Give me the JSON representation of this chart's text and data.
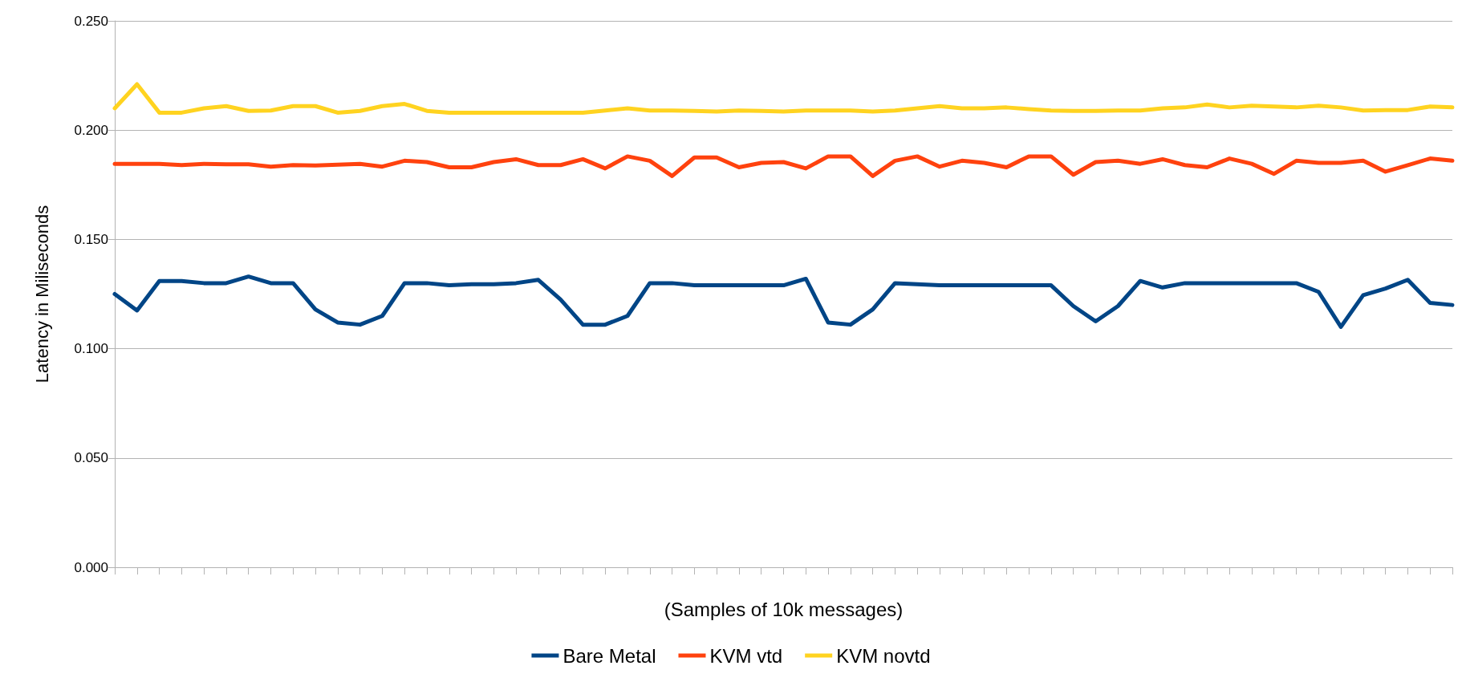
{
  "chart_data": {
    "type": "line",
    "xlabel": "(Samples of 10k messages)",
    "ylabel": "Latency in Miliseconds",
    "categories": [
      null,
      null,
      null,
      null,
      null,
      null,
      null,
      null,
      null,
      null,
      null,
      null,
      null,
      null,
      null,
      null,
      null,
      null,
      null,
      null,
      null,
      null,
      null,
      null,
      null,
      null,
      null,
      null,
      null,
      null,
      null,
      null,
      null,
      null,
      null,
      null,
      null,
      null,
      null,
      null,
      null,
      null,
      null,
      null,
      null,
      null,
      null,
      null,
      null,
      null,
      null,
      null,
      null,
      null,
      null,
      null,
      null,
      null,
      null,
      null,
      null
    ],
    "series": [
      {
        "name": "Bare Metal",
        "color": "#004586",
        "values": [
          0.125,
          0.1175,
          0.131,
          0.131,
          0.13,
          0.13,
          0.133,
          0.13,
          0.13,
          0.118,
          0.112,
          0.111,
          0.115,
          0.13,
          0.13,
          0.129,
          0.1295,
          0.1295,
          0.13,
          0.1315,
          0.1225,
          0.111,
          0.111,
          0.115,
          0.13,
          0.13,
          0.129,
          0.129,
          0.129,
          0.129,
          0.129,
          0.132,
          0.112,
          0.111,
          0.118,
          0.13,
          0.1295,
          0.129,
          0.129,
          0.129,
          0.129,
          0.129,
          0.129,
          0.1195,
          0.1125,
          0.1195,
          0.131,
          0.128,
          0.13,
          0.13,
          0.13,
          0.13,
          0.13,
          0.13,
          0.126,
          0.11,
          0.1245,
          0.1275,
          0.1315,
          0.121,
          0.12
        ]
      },
      {
        "name": "KVM vtd",
        "color": "#ff420e",
        "values": [
          0.1846,
          0.1846,
          0.1846,
          0.184,
          0.1846,
          0.1844,
          0.1844,
          0.1833,
          0.184,
          0.1838,
          0.1842,
          0.1846,
          0.1833,
          0.186,
          0.1854,
          0.183,
          0.183,
          0.1854,
          0.1867,
          0.184,
          0.184,
          0.1867,
          0.1825,
          0.188,
          0.186,
          0.179,
          0.1875,
          0.1875,
          0.183,
          0.185,
          0.1854,
          0.1825,
          0.188,
          0.188,
          0.179,
          0.186,
          0.188,
          0.1833,
          0.186,
          0.185,
          0.183,
          0.188,
          0.188,
          0.1796,
          0.1854,
          0.186,
          0.1846,
          0.1867,
          0.184,
          0.183,
          0.187,
          0.1846,
          0.18,
          0.186,
          0.185,
          0.185,
          0.186,
          0.181,
          0.184,
          0.187,
          0.186
        ]
      },
      {
        "name": "KVM novtd",
        "color": "#ffd320",
        "values": [
          0.21,
          0.221,
          0.208,
          0.208,
          0.21,
          0.211,
          0.2088,
          0.209,
          0.211,
          0.211,
          0.208,
          0.2088,
          0.211,
          0.212,
          0.2088,
          0.208,
          0.208,
          0.208,
          0.208,
          0.208,
          0.208,
          0.208,
          0.209,
          0.21,
          0.209,
          0.209,
          0.2088,
          0.2085,
          0.209,
          0.2088,
          0.2085,
          0.209,
          0.209,
          0.209,
          0.2085,
          0.209,
          0.21,
          0.211,
          0.21,
          0.21,
          0.2104,
          0.2096,
          0.209,
          0.2088,
          0.2088,
          0.209,
          0.209,
          0.21,
          0.2104,
          0.2117,
          0.2104,
          0.2112,
          0.2108,
          0.2104,
          0.2112,
          0.2104,
          0.209,
          0.2092,
          0.2092,
          0.2108,
          0.2104
        ]
      }
    ],
    "ylim": [
      0,
      0.25
    ],
    "yticks": [
      {
        "value": 0,
        "label": "0.000"
      },
      {
        "value": 0.05,
        "label": "0.050"
      },
      {
        "value": 0.1,
        "label": "0.100"
      },
      {
        "value": 0.15,
        "label": "0.150"
      },
      {
        "value": 0.2,
        "label": "0.200"
      },
      {
        "value": 0.25,
        "label": "0.250"
      }
    ],
    "grid": "y",
    "legend": "bottom",
    "marker": "none",
    "line_style": "solid"
  }
}
